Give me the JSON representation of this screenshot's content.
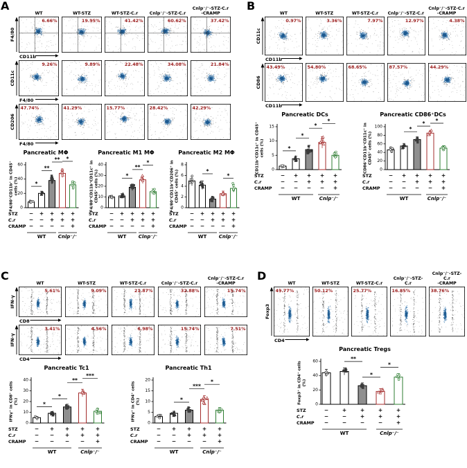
{
  "figure": {
    "pct_color": "#9b1c1c",
    "cluster_mid": "#4b86b8",
    "cluster_core": "#1d5a8f",
    "noise_color": "#6b6b6b",
    "bar_styles": [
      {
        "fill": "#ffffff",
        "stroke": "#000000",
        "marker": "#333333"
      },
      {
        "fill": "#ffffff",
        "stroke": "#000000",
        "marker": "#333333"
      },
      {
        "fill": "#8f8f8f",
        "stroke": "#000000",
        "marker": "#3d3d3d"
      },
      {
        "fill": "#ffffff",
        "stroke": "#a32b2b",
        "marker": "#a32b2b"
      },
      {
        "fill": "#ffffff",
        "stroke": "#2e7d32",
        "marker": "#2e7d32"
      }
    ],
    "marker_shapes": [
      "circle",
      "triangle",
      "square",
      "triangle",
      "circle"
    ],
    "marker_filled": [
      false,
      true,
      true,
      false,
      false
    ]
  },
  "columns": [
    "WT",
    "WT-STZ",
    "WT-STZ-C.r",
    "Cnlp⁻/⁻-STZ-C.r",
    "Cnlp⁻/⁻-STZ-C.r\n-CRAMP"
  ],
  "treatments": {
    "rows": [
      {
        "label": "STZ",
        "italic": false,
        "signs": [
          "−",
          "+",
          "+",
          "+",
          "+"
        ]
      },
      {
        "label": "C.r",
        "italic": true,
        "signs": [
          "−",
          "−",
          "+",
          "+",
          "+"
        ]
      },
      {
        "label": "CRAMP",
        "italic": false,
        "signs": [
          "−",
          "−",
          "−",
          "−",
          "+"
        ]
      }
    ]
  },
  "panels": {
    "A": {
      "label": "A",
      "flow_rows": [
        {
          "y": "F4/80",
          "x": "CD11b",
          "style": "blob",
          "gate": "cross",
          "pct_side": "right",
          "pcts": [
            "6.66%",
            "19.95%",
            "41.42%",
            "60.62%",
            "37.42%"
          ]
        },
        {
          "y": "CD11c",
          "x": "F4/80",
          "style": "blob",
          "gate": "none",
          "pct_side": "right",
          "pcts": [
            "9.26%",
            "9.89%",
            "22.48%",
            "34.08%",
            "21.84%"
          ]
        },
        {
          "y": "CD206",
          "x": "F4/80",
          "style": "blob",
          "gate": "none",
          "pct_side": "left",
          "pcts": [
            "47.74%",
            "41.29%",
            "15.77%",
            "28.42%",
            "42.29%"
          ]
        }
      ],
      "charts": [
        {
          "type": "bar",
          "title": "Pancreatic MΦ",
          "ylabel": [
            "F4/80⁺CD11b⁺ in CD45⁺",
            "cells (%)"
          ],
          "ymax": 60,
          "yticks": [
            0,
            20,
            40,
            60
          ],
          "values": [
            8,
            20,
            38,
            48,
            32
          ],
          "errors": [
            2,
            3,
            5,
            6,
            5
          ],
          "sig": [
            {
              "a": 0,
              "b": 1,
              "label": "*"
            },
            {
              "a": 1,
              "b": 2,
              "label": "**"
            },
            {
              "a": 2,
              "b": 3,
              "label": "**"
            },
            {
              "a": 3,
              "b": 4,
              "label": "*"
            }
          ],
          "groups": [
            {
              "label": "WT",
              "from": 0,
              "to": 2,
              "italic": false
            },
            {
              "label": "Cnlp⁻/⁻",
              "from": 3,
              "to": 4,
              "italic": true
            }
          ]
        },
        {
          "type": "bar",
          "title": "Pancreatic M1 MΦ",
          "ylabel": [
            "F4/80⁺CD11b⁺CD11c⁺ in",
            "CD45⁺ cells (%)"
          ],
          "ymax": 40,
          "yticks": [
            0,
            10,
            20,
            30,
            40
          ],
          "values": [
            10,
            11,
            19,
            26,
            15
          ],
          "errors": [
            1.5,
            2,
            3,
            3.5,
            2.5
          ],
          "sig": [
            {
              "a": 1,
              "b": 2,
              "label": "*"
            },
            {
              "a": 2,
              "b": 3,
              "label": "**"
            },
            {
              "a": 3,
              "b": 4,
              "label": "*"
            }
          ],
          "groups": [
            {
              "label": "WT",
              "from": 0,
              "to": 2,
              "italic": false
            },
            {
              "label": "Clnp⁻/⁻",
              "from": 3,
              "to": 4,
              "italic": true
            }
          ]
        },
        {
          "type": "bar",
          "title": "Pancreatic M2 MΦ",
          "ylabel": [
            "F4/80⁺CD11b⁺CD206⁺ in",
            "CD45⁺ cells (%)"
          ],
          "ymax": 8,
          "yticks": [
            0,
            2,
            4,
            6,
            8
          ],
          "values": [
            5,
            4.2,
            1.6,
            2.6,
            3.6
          ],
          "errors": [
            0.9,
            0.8,
            0.4,
            0.5,
            0.7
          ],
          "sig": [
            {
              "a": 1,
              "b": 2,
              "label": "*"
            },
            {
              "a": 3,
              "b": 4,
              "label": "*"
            }
          ],
          "groups": [
            {
              "label": "WT",
              "from": 0,
              "to": 2,
              "italic": false
            },
            {
              "label": "Cnlp⁻/⁻",
              "from": 3,
              "to": 4,
              "italic": true
            }
          ]
        }
      ]
    },
    "B": {
      "label": "B",
      "flow_rows": [
        {
          "y": "CD11c",
          "x": "CD11b",
          "style": "blob",
          "gate": "none",
          "pct_side": "right",
          "pcts": [
            "0.97%",
            "3.36%",
            "7.97%",
            "12.97%",
            "4.38%"
          ]
        },
        {
          "y": "CD86",
          "x": "CD11b",
          "style": "blob",
          "gate": "none",
          "pct_side": "left",
          "pcts": [
            "43.49%",
            "54.80%",
            "68.65%",
            "87.57%",
            "44.29%"
          ]
        }
      ],
      "charts": [
        {
          "type": "bar",
          "title": "Pancreatic DCs",
          "ylabel": [
            "CD11b⁺CD11c⁺ in CD45⁺",
            "cells (%)"
          ],
          "ymax": 15,
          "yticks": [
            0,
            5,
            10,
            15
          ],
          "values": [
            1.2,
            3.8,
            7,
            9.5,
            5
          ],
          "errors": [
            0.4,
            0.9,
            1.5,
            2,
            1.2
          ],
          "sig": [
            {
              "a": 0,
              "b": 1,
              "label": "*"
            },
            {
              "a": 1,
              "b": 2,
              "label": "*"
            },
            {
              "a": 2,
              "b": 3,
              "label": "*"
            },
            {
              "a": 3,
              "b": 4,
              "label": "*"
            }
          ],
          "groups": [
            {
              "label": "WT",
              "from": 0,
              "to": 2,
              "italic": false
            },
            {
              "label": "Cnlp⁻/⁻",
              "from": 3,
              "to": 4,
              "italic": true
            }
          ]
        },
        {
          "type": "bar",
          "title": "Pancreatic CD86⁺DCs",
          "ylabel": [
            "CD86⁺CD11b⁺CD11c⁺ in",
            "CD45⁺ cells (%)"
          ],
          "ymax": 100,
          "yticks": [
            0,
            20,
            40,
            60,
            80,
            100
          ],
          "values": [
            46,
            55,
            70,
            85,
            50
          ],
          "errors": [
            5,
            6,
            6,
            5,
            6
          ],
          "sig": [
            {
              "a": 1,
              "b": 2,
              "label": "*"
            },
            {
              "a": 2,
              "b": 3,
              "label": "*"
            },
            {
              "a": 3,
              "b": 4,
              "label": "*"
            }
          ],
          "groups": [
            {
              "label": "WT",
              "from": 0,
              "to": 2,
              "italic": false
            },
            {
              "label": "Cnlp⁻/⁻",
              "from": 3,
              "to": 4,
              "italic": true
            }
          ]
        }
      ]
    },
    "C": {
      "label": "C",
      "flow_rows": [
        {
          "y": "IFN-γ",
          "x": "CD8",
          "style": "columns",
          "gate": "none",
          "pct_side": "right",
          "pcts": [
            "5.61%",
            "9.09%",
            "21.87%",
            "32.88%",
            "15.74%"
          ]
        },
        {
          "y": "IFN-γ",
          "x": "CD4",
          "style": "columns",
          "gate": "none",
          "pct_side": "right",
          "pcts": [
            "3.41%",
            "4.56%",
            "6.98%",
            "15.74%",
            "7.51%"
          ]
        }
      ],
      "charts": [
        {
          "type": "bar",
          "title": "Pancreatic Tc1",
          "ylabel": [
            "IFNγ⁺ in CD8⁺ cells",
            "(%)"
          ],
          "ymax": 40,
          "yticks": [
            0,
            10,
            20,
            30,
            40
          ],
          "values": [
            5,
            9,
            15,
            28,
            11
          ],
          "errors": [
            1.2,
            1.8,
            2.5,
            3.5,
            2
          ],
          "sig": [
            {
              "a": 0,
              "b": 1,
              "label": "*"
            },
            {
              "a": 1,
              "b": 2,
              "label": "*"
            },
            {
              "a": 2,
              "b": 3,
              "label": "**"
            },
            {
              "a": 3,
              "b": 4,
              "label": "***"
            }
          ],
          "groups": [
            {
              "label": "WT",
              "from": 0,
              "to": 2,
              "italic": false
            },
            {
              "label": "Cnlp⁻/⁻",
              "from": 3,
              "to": 4,
              "italic": true
            }
          ]
        },
        {
          "type": "bar",
          "title": "Pancreatic Th1",
          "ylabel": [
            "IFNγ⁺ in CD4⁺ cells",
            "(%)"
          ],
          "ymax": 20,
          "yticks": [
            0,
            5,
            10,
            15,
            20
          ],
          "values": [
            3,
            4.5,
            6,
            11,
            6
          ],
          "errors": [
            0.8,
            1,
            1.2,
            1.8,
            1.2
          ],
          "sig": [
            {
              "a": 1,
              "b": 2,
              "label": "*"
            },
            {
              "a": 2,
              "b": 3,
              "label": "***"
            },
            {
              "a": 3,
              "b": 4,
              "label": "*"
            }
          ],
          "groups": [
            {
              "label": "WT",
              "from": 0,
              "to": 2,
              "italic": false
            },
            {
              "label": "Cnlp⁻/⁻",
              "from": 3,
              "to": 4,
              "italic": true
            }
          ]
        }
      ]
    },
    "D": {
      "label": "D",
      "flow_rows": [
        {
          "y": "Foxp3",
          "x": "CD4",
          "style": "columns",
          "gate": "none",
          "pct_side": "left",
          "pcts": [
            "49.77%",
            "50.12%",
            "25.77%",
            "16.85%",
            "38.76%"
          ]
        }
      ],
      "charts": [
        {
          "type": "bar",
          "title": "Pancreatic Tregs",
          "ylabel": [
            "Foxp3⁺ in CD4⁺ cells",
            "(%)"
          ],
          "ymax": 60,
          "yticks": [
            0,
            20,
            40,
            60
          ],
          "values": [
            44,
            46,
            26,
            18,
            38
          ],
          "errors": [
            5,
            5,
            4,
            4,
            5
          ],
          "sig": [
            {
              "a": 1,
              "b": 2,
              "label": "**"
            },
            {
              "a": 2,
              "b": 3,
              "label": "*"
            },
            {
              "a": 3,
              "b": 4,
              "label": "*"
            }
          ],
          "groups": [
            {
              "label": "WT",
              "from": 0,
              "to": 2,
              "italic": false
            },
            {
              "label": "Cnlp⁻/⁻",
              "from": 3,
              "to": 4,
              "italic": true
            }
          ]
        }
      ]
    }
  }
}
